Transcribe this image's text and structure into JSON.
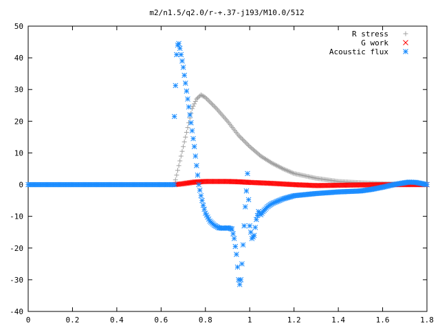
{
  "chart_data": {
    "type": "scatter",
    "title": "m2/n1.5/q2.0/r-+.37-j193/M10.0/512",
    "xlabel": "",
    "ylabel": "",
    "xlim": [
      0,
      1.8
    ],
    "ylim": [
      -40,
      50
    ],
    "x_ticks": [
      "0",
      "0.2",
      "0.4",
      "0.6",
      "0.8",
      "1",
      "1.2",
      "1.4",
      "1.6",
      "1.8"
    ],
    "y_ticks": [
      "-40",
      "-30",
      "-20",
      "-10",
      "0",
      "10",
      "20",
      "30",
      "40",
      "50"
    ],
    "grid": false,
    "legend_position": "top-right",
    "series": [
      {
        "name": "R stress",
        "marker": "+",
        "color": "#a0a0a0",
        "x": [
          0.0,
          0.2,
          0.4,
          0.6,
          0.66,
          0.68,
          0.7,
          0.72,
          0.74,
          0.76,
          0.78,
          0.8,
          0.85,
          0.9,
          0.95,
          1.0,
          1.05,
          1.1,
          1.15,
          1.2,
          1.3,
          1.4,
          1.5,
          1.6,
          1.7,
          1.8
        ],
        "y": [
          0,
          0,
          0,
          0,
          0,
          6,
          12,
          18,
          24,
          27,
          28.3,
          27.5,
          24,
          20,
          15.5,
          12,
          9,
          6.8,
          5,
          3.5,
          2,
          1,
          0.6,
          0.3,
          0.1,
          0
        ]
      },
      {
        "name": "G work",
        "marker": "x",
        "color": "#ff0000",
        "x": [
          0.66,
          0.7,
          0.75,
          0.8,
          0.85,
          0.9,
          0.95,
          1.0,
          1.1,
          1.2,
          1.3,
          1.4,
          1.5,
          1.6,
          1.7,
          1.8
        ],
        "y": [
          0,
          0.3,
          0.8,
          1,
          1,
          1,
          0.9,
          0.7,
          0.4,
          0,
          -0.3,
          -0.2,
          -0.1,
          0,
          0,
          0
        ]
      },
      {
        "name": "Acoustic flux",
        "marker": "*",
        "color": "#1a8cff",
        "x": [
          0.0,
          0.2,
          0.4,
          0.6,
          0.66,
          0.66,
          0.67,
          0.675,
          0.68,
          0.685,
          0.69,
          0.7,
          0.71,
          0.72,
          0.73,
          0.74,
          0.75,
          0.76,
          0.77,
          0.78,
          0.79,
          0.8,
          0.82,
          0.84,
          0.86,
          0.88,
          0.9,
          0.92,
          0.93,
          0.94,
          0.945,
          0.95,
          0.955,
          0.96,
          0.965,
          0.97,
          0.975,
          0.98,
          0.985,
          0.99,
          1.0,
          1.01,
          1.02,
          1.03,
          1.04,
          1.05,
          1.06,
          1.08,
          1.1,
          1.15,
          1.2,
          1.3,
          1.4,
          1.5,
          1.55,
          1.6,
          1.65,
          1.7,
          1.72,
          1.75,
          1.8
        ],
        "y": [
          0,
          0,
          0,
          0,
          0,
          21.5,
          41,
          44,
          44.5,
          43,
          41,
          37,
          32,
          27,
          22,
          17,
          12,
          6,
          0,
          -3.5,
          -6.5,
          -9,
          -11.5,
          -12.8,
          -13.6,
          -13.8,
          -13.6,
          -14,
          -17,
          -22,
          -26,
          -30,
          -31.5,
          -30,
          -25,
          -19,
          -13,
          -7,
          -2,
          3.5,
          -13,
          -17,
          -16,
          -11,
          -8.5,
          -9.5,
          -8.5,
          -7,
          -6,
          -4.5,
          -3.5,
          -2.8,
          -2.3,
          -2,
          -1.5,
          -0.8,
          0,
          0.6,
          0.8,
          0.7,
          0
        ]
      }
    ]
  }
}
